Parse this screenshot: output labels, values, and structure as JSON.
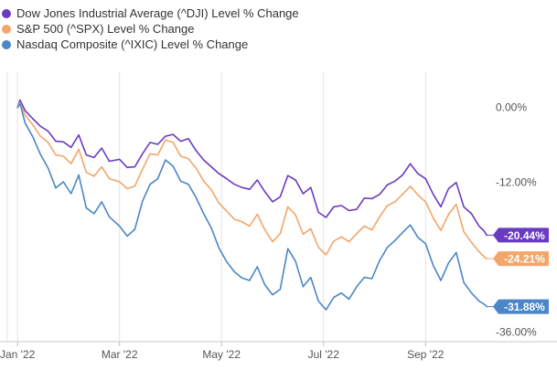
{
  "chart_data": {
    "type": "line",
    "title": "",
    "xlabel": "",
    "ylabel": "",
    "x_tick_labels": [
      "Jan '22",
      "Mar '22",
      "May '22",
      "Jul '22",
      "Sep '22"
    ],
    "x_tick_month_index": [
      0,
      2,
      4,
      6,
      8
    ],
    "x_range_months": [
      -0.2,
      9.25
    ],
    "y_tick_values": [
      0,
      -12,
      -24,
      -36
    ],
    "y_tick_labels": [
      "0.00%",
      "-12.00%",
      "-24.00%",
      "-36.00%"
    ],
    "ylim": [
      -37.5,
      2
    ],
    "grid": "vertical",
    "legend_position": "top-left",
    "series": [
      {
        "name": "Dow Jones Industrial Average (^DJI) Level % Change",
        "color": "#6a3bc2",
        "end_label": "-20.44%",
        "end_value": -20.44,
        "points": [
          [
            0,
            0.0
          ],
          [
            0.05,
            1.2
          ],
          [
            0.15,
            -0.5
          ],
          [
            0.3,
            -1.8
          ],
          [
            0.45,
            -3.0
          ],
          [
            0.6,
            -3.8
          ],
          [
            0.75,
            -5.4
          ],
          [
            0.9,
            -5.5
          ],
          [
            1.05,
            -6.4
          ],
          [
            1.2,
            -4.4
          ],
          [
            1.35,
            -7.6
          ],
          [
            1.5,
            -8.0
          ],
          [
            1.65,
            -6.5
          ],
          [
            1.8,
            -8.6
          ],
          [
            2.0,
            -8.3
          ],
          [
            2.15,
            -9.6
          ],
          [
            2.3,
            -9.5
          ],
          [
            2.45,
            -7.4
          ],
          [
            2.6,
            -5.6
          ],
          [
            2.75,
            -5.9
          ],
          [
            2.9,
            -4.6
          ],
          [
            3.05,
            -4.3
          ],
          [
            3.2,
            -5.4
          ],
          [
            3.35,
            -5.0
          ],
          [
            3.5,
            -6.9
          ],
          [
            3.65,
            -8.4
          ],
          [
            3.8,
            -9.5
          ],
          [
            3.95,
            -10.6
          ],
          [
            4.1,
            -11.4
          ],
          [
            4.25,
            -12.3
          ],
          [
            4.4,
            -12.8
          ],
          [
            4.55,
            -13.1
          ],
          [
            4.7,
            -11.6
          ],
          [
            4.85,
            -13.5
          ],
          [
            5.0,
            -15.1
          ],
          [
            5.15,
            -14.3
          ],
          [
            5.3,
            -10.9
          ],
          [
            5.45,
            -11.6
          ],
          [
            5.6,
            -13.8
          ],
          [
            5.75,
            -12.8
          ],
          [
            5.9,
            -16.8
          ],
          [
            6.05,
            -17.6
          ],
          [
            6.2,
            -15.9
          ],
          [
            6.35,
            -15.7
          ],
          [
            6.5,
            -16.5
          ],
          [
            6.65,
            -16.3
          ],
          [
            6.8,
            -14.5
          ],
          [
            6.95,
            -14.6
          ],
          [
            7.1,
            -13.9
          ],
          [
            7.25,
            -12.4
          ],
          [
            7.4,
            -11.8
          ],
          [
            7.55,
            -10.8
          ],
          [
            7.7,
            -9.0
          ],
          [
            7.85,
            -10.6
          ],
          [
            8.0,
            -11.4
          ],
          [
            8.15,
            -13.9
          ],
          [
            8.3,
            -15.9
          ],
          [
            8.45,
            -13.0
          ],
          [
            8.6,
            -12.0
          ],
          [
            8.75,
            -15.9
          ],
          [
            8.9,
            -17.0
          ],
          [
            9.05,
            -19.0
          ],
          [
            9.15,
            -19.8
          ],
          [
            9.2,
            -20.44
          ]
        ]
      },
      {
        "name": "S&P 500 (^SPX) Level % Change",
        "color": "#f2a66b",
        "end_label": "-24.21%",
        "end_value": -24.21,
        "points": [
          [
            0,
            0.0
          ],
          [
            0.05,
            0.8
          ],
          [
            0.15,
            -1.2
          ],
          [
            0.3,
            -2.8
          ],
          [
            0.45,
            -4.6
          ],
          [
            0.6,
            -5.6
          ],
          [
            0.75,
            -7.6
          ],
          [
            0.9,
            -7.8
          ],
          [
            1.05,
            -9.0
          ],
          [
            1.2,
            -6.7
          ],
          [
            1.35,
            -10.4
          ],
          [
            1.5,
            -11.0
          ],
          [
            1.65,
            -9.5
          ],
          [
            1.8,
            -11.4
          ],
          [
            2.0,
            -11.9
          ],
          [
            2.15,
            -13.0
          ],
          [
            2.3,
            -12.6
          ],
          [
            2.45,
            -9.9
          ],
          [
            2.6,
            -7.4
          ],
          [
            2.75,
            -7.6
          ],
          [
            2.9,
            -5.2
          ],
          [
            3.05,
            -5.6
          ],
          [
            3.2,
            -7.8
          ],
          [
            3.35,
            -8.2
          ],
          [
            3.5,
            -9.7
          ],
          [
            3.65,
            -11.8
          ],
          [
            3.8,
            -13.2
          ],
          [
            3.95,
            -15.3
          ],
          [
            4.1,
            -16.6
          ],
          [
            4.25,
            -17.9
          ],
          [
            4.4,
            -18.3
          ],
          [
            4.55,
            -19.0
          ],
          [
            4.7,
            -17.1
          ],
          [
            4.85,
            -19.6
          ],
          [
            5.0,
            -21.5
          ],
          [
            5.15,
            -20.2
          ],
          [
            5.3,
            -15.9
          ],
          [
            5.45,
            -17.2
          ],
          [
            5.6,
            -20.3
          ],
          [
            5.75,
            -19.4
          ],
          [
            5.9,
            -22.4
          ],
          [
            6.05,
            -23.6
          ],
          [
            6.2,
            -21.4
          ],
          [
            6.35,
            -20.7
          ],
          [
            6.5,
            -21.5
          ],
          [
            6.65,
            -20.2
          ],
          [
            6.8,
            -19.0
          ],
          [
            6.95,
            -19.6
          ],
          [
            7.1,
            -17.5
          ],
          [
            7.25,
            -15.7
          ],
          [
            7.4,
            -15.1
          ],
          [
            7.55,
            -13.9
          ],
          [
            7.7,
            -12.6
          ],
          [
            7.85,
            -14.0
          ],
          [
            8.0,
            -15.1
          ],
          [
            8.15,
            -17.7
          ],
          [
            8.3,
            -19.7
          ],
          [
            8.45,
            -17.1
          ],
          [
            8.6,
            -15.5
          ],
          [
            8.75,
            -19.9
          ],
          [
            8.9,
            -21.6
          ],
          [
            9.05,
            -23.1
          ],
          [
            9.15,
            -23.9
          ],
          [
            9.2,
            -24.21
          ]
        ]
      },
      {
        "name": "Nasdaq Composite (^IXIC) Level % Change",
        "color": "#4a86c8",
        "end_label": "-31.88%",
        "end_value": -31.88,
        "points": [
          [
            0,
            0.0
          ],
          [
            0.05,
            0.6
          ],
          [
            0.15,
            -2.5
          ],
          [
            0.3,
            -4.7
          ],
          [
            0.45,
            -7.5
          ],
          [
            0.6,
            -9.7
          ],
          [
            0.75,
            -12.9
          ],
          [
            0.9,
            -11.9
          ],
          [
            1.05,
            -13.8
          ],
          [
            1.2,
            -10.8
          ],
          [
            1.35,
            -16.1
          ],
          [
            1.5,
            -17.0
          ],
          [
            1.65,
            -15.1
          ],
          [
            1.8,
            -17.5
          ],
          [
            2.0,
            -19.0
          ],
          [
            2.15,
            -20.6
          ],
          [
            2.3,
            -19.5
          ],
          [
            2.45,
            -15.0
          ],
          [
            2.6,
            -12.3
          ],
          [
            2.75,
            -11.4
          ],
          [
            2.9,
            -8.4
          ],
          [
            3.05,
            -9.4
          ],
          [
            3.2,
            -11.8
          ],
          [
            3.35,
            -12.3
          ],
          [
            3.5,
            -14.4
          ],
          [
            3.65,
            -17.0
          ],
          [
            3.8,
            -19.3
          ],
          [
            3.95,
            -22.5
          ],
          [
            4.1,
            -24.7
          ],
          [
            4.25,
            -26.3
          ],
          [
            4.4,
            -27.3
          ],
          [
            4.55,
            -27.7
          ],
          [
            4.7,
            -25.5
          ],
          [
            4.85,
            -28.4
          ],
          [
            5.0,
            -30.0
          ],
          [
            5.15,
            -29.1
          ],
          [
            5.3,
            -22.6
          ],
          [
            5.45,
            -24.6
          ],
          [
            5.6,
            -28.7
          ],
          [
            5.75,
            -27.2
          ],
          [
            5.9,
            -31.0
          ],
          [
            6.05,
            -32.4
          ],
          [
            6.2,
            -30.4
          ],
          [
            6.35,
            -29.7
          ],
          [
            6.5,
            -30.7
          ],
          [
            6.65,
            -28.7
          ],
          [
            6.8,
            -27.2
          ],
          [
            6.95,
            -27.4
          ],
          [
            7.1,
            -24.5
          ],
          [
            7.25,
            -22.4
          ],
          [
            7.4,
            -21.3
          ],
          [
            7.55,
            -20.0
          ],
          [
            7.7,
            -18.8
          ],
          [
            7.85,
            -20.8
          ],
          [
            8.0,
            -21.8
          ],
          [
            8.15,
            -25.3
          ],
          [
            8.3,
            -27.7
          ],
          [
            8.45,
            -24.9
          ],
          [
            8.6,
            -23.2
          ],
          [
            8.75,
            -28.0
          ],
          [
            8.9,
            -29.7
          ],
          [
            9.05,
            -31.0
          ],
          [
            9.15,
            -31.5
          ],
          [
            9.2,
            -31.88
          ]
        ]
      }
    ]
  }
}
